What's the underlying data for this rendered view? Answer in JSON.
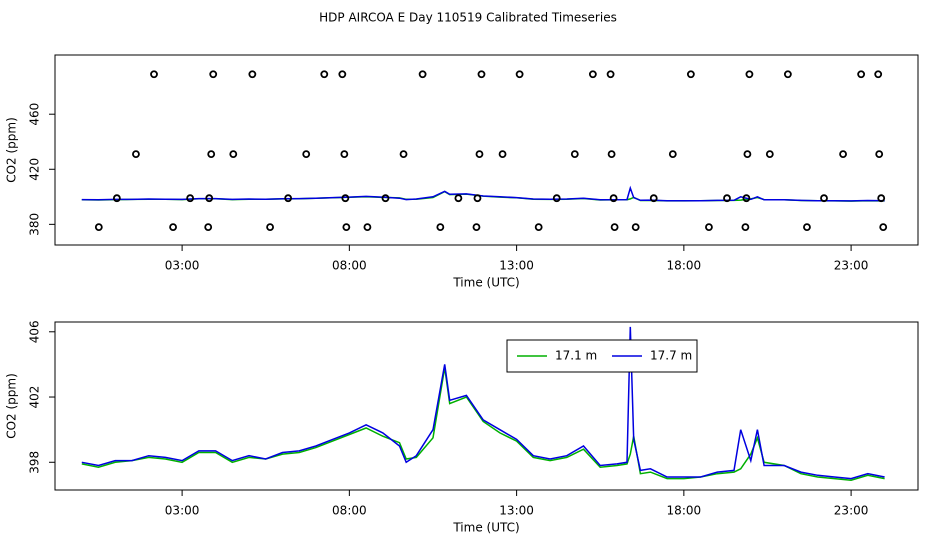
{
  "chart_data": [
    {
      "type": "line",
      "title": "HDP AIRCOA E  Day 110519  Calibrated Timeseries",
      "x_label": "Time (UTC)",
      "y_label": "CO2 (ppm)",
      "xlim": [
        -0.8,
        25.0
      ],
      "ylim": [
        365,
        503
      ],
      "xticks": [
        {
          "value": 3,
          "label": "03:00"
        },
        {
          "value": 8,
          "label": "08:00"
        },
        {
          "value": 13,
          "label": "13:00"
        },
        {
          "value": 18,
          "label": "18:00"
        },
        {
          "value": 23,
          "label": "23:00"
        }
      ],
      "yticks": [
        380,
        420,
        460
      ],
      "x": [
        0,
        0.5,
        1,
        1.5,
        2,
        2.5,
        3,
        3.5,
        4,
        4.5,
        5,
        5.5,
        6,
        6.5,
        7,
        7.5,
        8,
        8.5,
        9,
        9.5,
        9.7,
        10,
        10.5,
        10.85,
        11,
        11.5,
        12,
        12.5,
        13,
        13.5,
        14,
        14.5,
        15,
        15.5,
        16,
        16.3,
        16.4,
        16.5,
        16.7,
        17,
        17.5,
        18,
        18.5,
        19,
        19.5,
        19.7,
        20,
        20.2,
        20.4,
        21,
        21.5,
        22,
        22.5,
        23,
        23.5,
        24
      ],
      "series": [
        {
          "color": "#00b000",
          "values": [
            397.9,
            397.7,
            398.0,
            398.1,
            398.3,
            398.2,
            398.0,
            398.6,
            398.6,
            398.0,
            398.3,
            398.2,
            398.5,
            398.6,
            398.9,
            399.3,
            399.7,
            400.1,
            399.6,
            399.2,
            398.2,
            398.3,
            399.5,
            403.8,
            401.6,
            402.0,
            400.5,
            399.8,
            399.3,
            398.3,
            398.1,
            398.3,
            398.8,
            397.7,
            397.8,
            397.9,
            398.5,
            399.6,
            397.3,
            397.4,
            397.0,
            397.0,
            397.1,
            397.3,
            397.4,
            397.6,
            398.5,
            399.5,
            398.0,
            397.8,
            397.3,
            397.1,
            397.0,
            396.9,
            397.2,
            397.0
          ]
        },
        {
          "color": "#0000e0",
          "values": [
            398.0,
            397.8,
            398.1,
            398.1,
            398.4,
            398.3,
            398.1,
            398.7,
            398.7,
            398.1,
            398.4,
            398.2,
            398.6,
            398.7,
            399.0,
            399.4,
            399.8,
            400.3,
            399.8,
            399.0,
            398.0,
            398.4,
            400.0,
            404.0,
            401.8,
            402.1,
            400.6,
            400.0,
            399.4,
            398.4,
            398.2,
            398.4,
            399.0,
            397.8,
            397.9,
            398.0,
            406.3,
            399.4,
            397.5,
            397.6,
            397.1,
            397.1,
            397.1,
            397.4,
            397.5,
            400.0,
            398.1,
            400.0,
            397.8,
            397.8,
            397.4,
            397.2,
            397.1,
            397.0,
            397.3,
            397.1
          ]
        }
      ],
      "points": {
        "color": "#000000",
        "x": [
          0.51,
          1.05,
          2.16,
          1.62,
          2.73,
          3.24,
          3.81,
          3.78,
          3.93,
          3.87,
          4.53,
          5.1,
          5.63,
          6.17,
          6.71,
          7.25,
          7.79,
          7.85,
          7.91,
          7.88,
          8.54,
          9.08,
          9.62,
          10.19,
          10.72,
          11.26,
          11.83,
          11.8,
          11.89,
          11.95,
          12.58,
          13.09,
          13.66,
          14.2,
          14.74,
          15.28,
          15.81,
          15.84,
          15.9,
          15.93,
          16.56,
          17.1,
          17.67,
          18.21,
          18.75,
          19.29,
          19.84,
          19.87,
          19.9,
          19.96,
          20.57,
          21.11,
          21.68,
          22.19,
          22.76,
          23.3,
          23.81,
          23.84,
          23.9,
          23.96
        ],
        "values": [
          378,
          399,
          489,
          431,
          378,
          399,
          399,
          378,
          489,
          431,
          431,
          489,
          378,
          399,
          431,
          489,
          489,
          431,
          378,
          399,
          378,
          399,
          431,
          489,
          378,
          399,
          399,
          378,
          431,
          489,
          431,
          489,
          378,
          399,
          431,
          489,
          489,
          431,
          399,
          378,
          378,
          399,
          431,
          489,
          378,
          399,
          378,
          399,
          431,
          489,
          431,
          489,
          378,
          399,
          431,
          489,
          489,
          431,
          399,
          378
        ]
      }
    },
    {
      "type": "line",
      "x_label": "Time (UTC)",
      "y_label": "CO2 (ppm)",
      "xlim": [
        -0.8,
        25.0
      ],
      "ylim": [
        396.3,
        406.6
      ],
      "xticks": [
        {
          "value": 3,
          "label": "03:00"
        },
        {
          "value": 8,
          "label": "08:00"
        },
        {
          "value": 13,
          "label": "13:00"
        },
        {
          "value": 18,
          "label": "18:00"
        },
        {
          "value": 23,
          "label": "23:00"
        }
      ],
      "yticks": [
        398,
        402,
        406
      ],
      "legend": "top",
      "x": [
        0,
        0.5,
        1,
        1.5,
        2,
        2.5,
        3,
        3.5,
        4,
        4.5,
        5,
        5.5,
        6,
        6.5,
        7,
        7.5,
        8,
        8.5,
        9,
        9.5,
        9.7,
        10,
        10.5,
        10.85,
        11,
        11.5,
        12,
        12.5,
        13,
        13.5,
        14,
        14.5,
        15,
        15.5,
        16,
        16.3,
        16.4,
        16.5,
        16.7,
        17,
        17.5,
        18,
        18.5,
        19,
        19.5,
        19.7,
        20,
        20.2,
        20.4,
        21,
        21.5,
        22,
        22.5,
        23,
        23.5,
        24
      ],
      "series": [
        {
          "name": "17.1 m",
          "color": "#00b000",
          "values": [
            397.9,
            397.7,
            398.0,
            398.1,
            398.3,
            398.2,
            398.0,
            398.6,
            398.6,
            398.0,
            398.3,
            398.2,
            398.5,
            398.6,
            398.9,
            399.3,
            399.7,
            400.1,
            399.6,
            399.2,
            398.2,
            398.3,
            399.5,
            403.8,
            401.6,
            402.0,
            400.5,
            399.8,
            399.3,
            398.3,
            398.1,
            398.3,
            398.8,
            397.7,
            397.8,
            397.9,
            398.5,
            399.6,
            397.3,
            397.4,
            397.0,
            397.0,
            397.1,
            397.3,
            397.4,
            397.6,
            398.5,
            399.5,
            398.0,
            397.8,
            397.3,
            397.1,
            397.0,
            396.9,
            397.2,
            397.0
          ]
        },
        {
          "name": "17.7 m",
          "color": "#0000e0",
          "values": [
            398.0,
            397.8,
            398.1,
            398.1,
            398.4,
            398.3,
            398.1,
            398.7,
            398.7,
            398.1,
            398.4,
            398.2,
            398.6,
            398.7,
            399.0,
            399.4,
            399.8,
            400.3,
            399.8,
            399.0,
            398.0,
            398.4,
            400.0,
            404.0,
            401.8,
            402.1,
            400.6,
            400.0,
            399.4,
            398.4,
            398.2,
            398.4,
            399.0,
            397.8,
            397.9,
            398.0,
            406.3,
            399.4,
            397.5,
            397.6,
            397.1,
            397.1,
            397.1,
            397.4,
            397.5,
            400.0,
            398.1,
            400.0,
            397.8,
            397.8,
            397.4,
            397.2,
            397.1,
            397.0,
            397.3,
            397.1
          ]
        }
      ]
    }
  ]
}
